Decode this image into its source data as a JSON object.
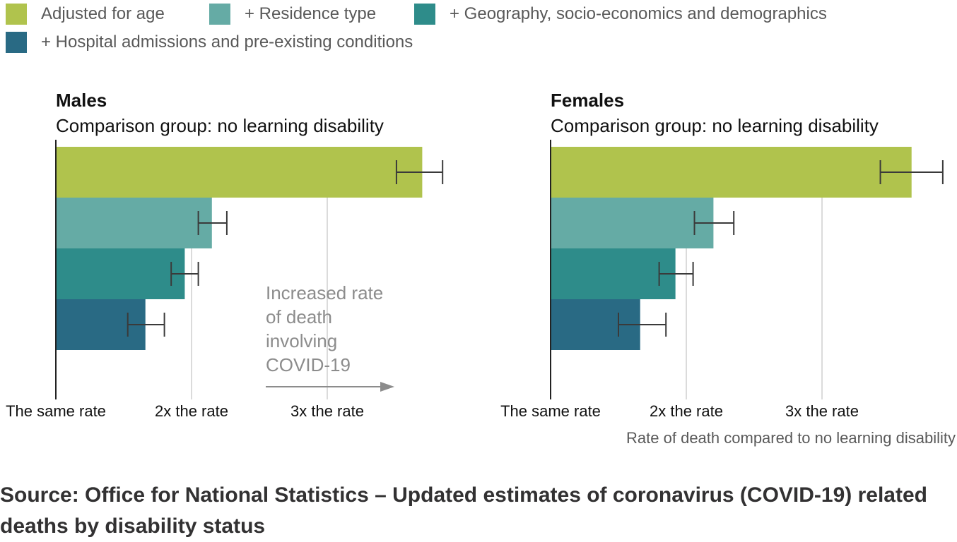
{
  "legend": [
    {
      "label": "Adjusted for age",
      "color": "#b0c34d"
    },
    {
      "label": "+ Residence type",
      "color": "#65aba5"
    },
    {
      "label": "+ Geography, socio-economics and demographics",
      "color": "#2e8c8a"
    },
    {
      "label": "+ Hospital admissions and pre-existing conditions",
      "color": "#296a84"
    }
  ],
  "annotation": {
    "lines": [
      "Increased rate",
      "of death",
      "involving",
      "COVID-19"
    ]
  },
  "x_axis_label": "Rate of death compared to no learning disability",
  "source": "Source: Office for National Statistics – Updated estimates of coronavirus (COVID-19) related deaths by disability status",
  "chart_data": [
    {
      "type": "bar",
      "orientation": "horizontal",
      "title": "Males",
      "subtitle": "Comparison group: no learning disability",
      "xlim": [
        1,
        3.85
      ],
      "x_ticks": [
        {
          "value": 1,
          "label": "The same rate"
        },
        {
          "value": 2,
          "label": "2x the rate"
        },
        {
          "value": 3,
          "label": "3x the rate"
        }
      ],
      "grid": true,
      "categories": [
        "Adjusted for age",
        "+ Residence type",
        "+ Geography, socio-economics and demographics",
        "+ Hospital admissions and pre-existing conditions"
      ],
      "values": [
        3.7,
        2.15,
        1.95,
        1.66
      ],
      "ci_low": [
        3.51,
        2.05,
        1.85,
        1.53
      ],
      "ci_high": [
        3.85,
        2.26,
        2.05,
        1.8
      ]
    },
    {
      "type": "bar",
      "orientation": "horizontal",
      "title": "Females",
      "subtitle": "Comparison group: no learning disability",
      "xlim": [
        1,
        3.85
      ],
      "x_ticks": [
        {
          "value": 1,
          "label": "The same rate"
        },
        {
          "value": 2,
          "label": "2x the rate"
        },
        {
          "value": 3,
          "label": "3x the rate"
        }
      ],
      "grid": true,
      "categories": [
        "Adjusted for age",
        "+ Residence type",
        "+ Geography, socio-economics and demographics",
        "+ Hospital admissions and pre-existing conditions"
      ],
      "values": [
        3.66,
        2.2,
        1.92,
        1.66
      ],
      "ci_low": [
        3.43,
        2.06,
        1.8,
        1.5
      ],
      "ci_high": [
        3.89,
        2.35,
        2.05,
        1.85
      ]
    }
  ]
}
